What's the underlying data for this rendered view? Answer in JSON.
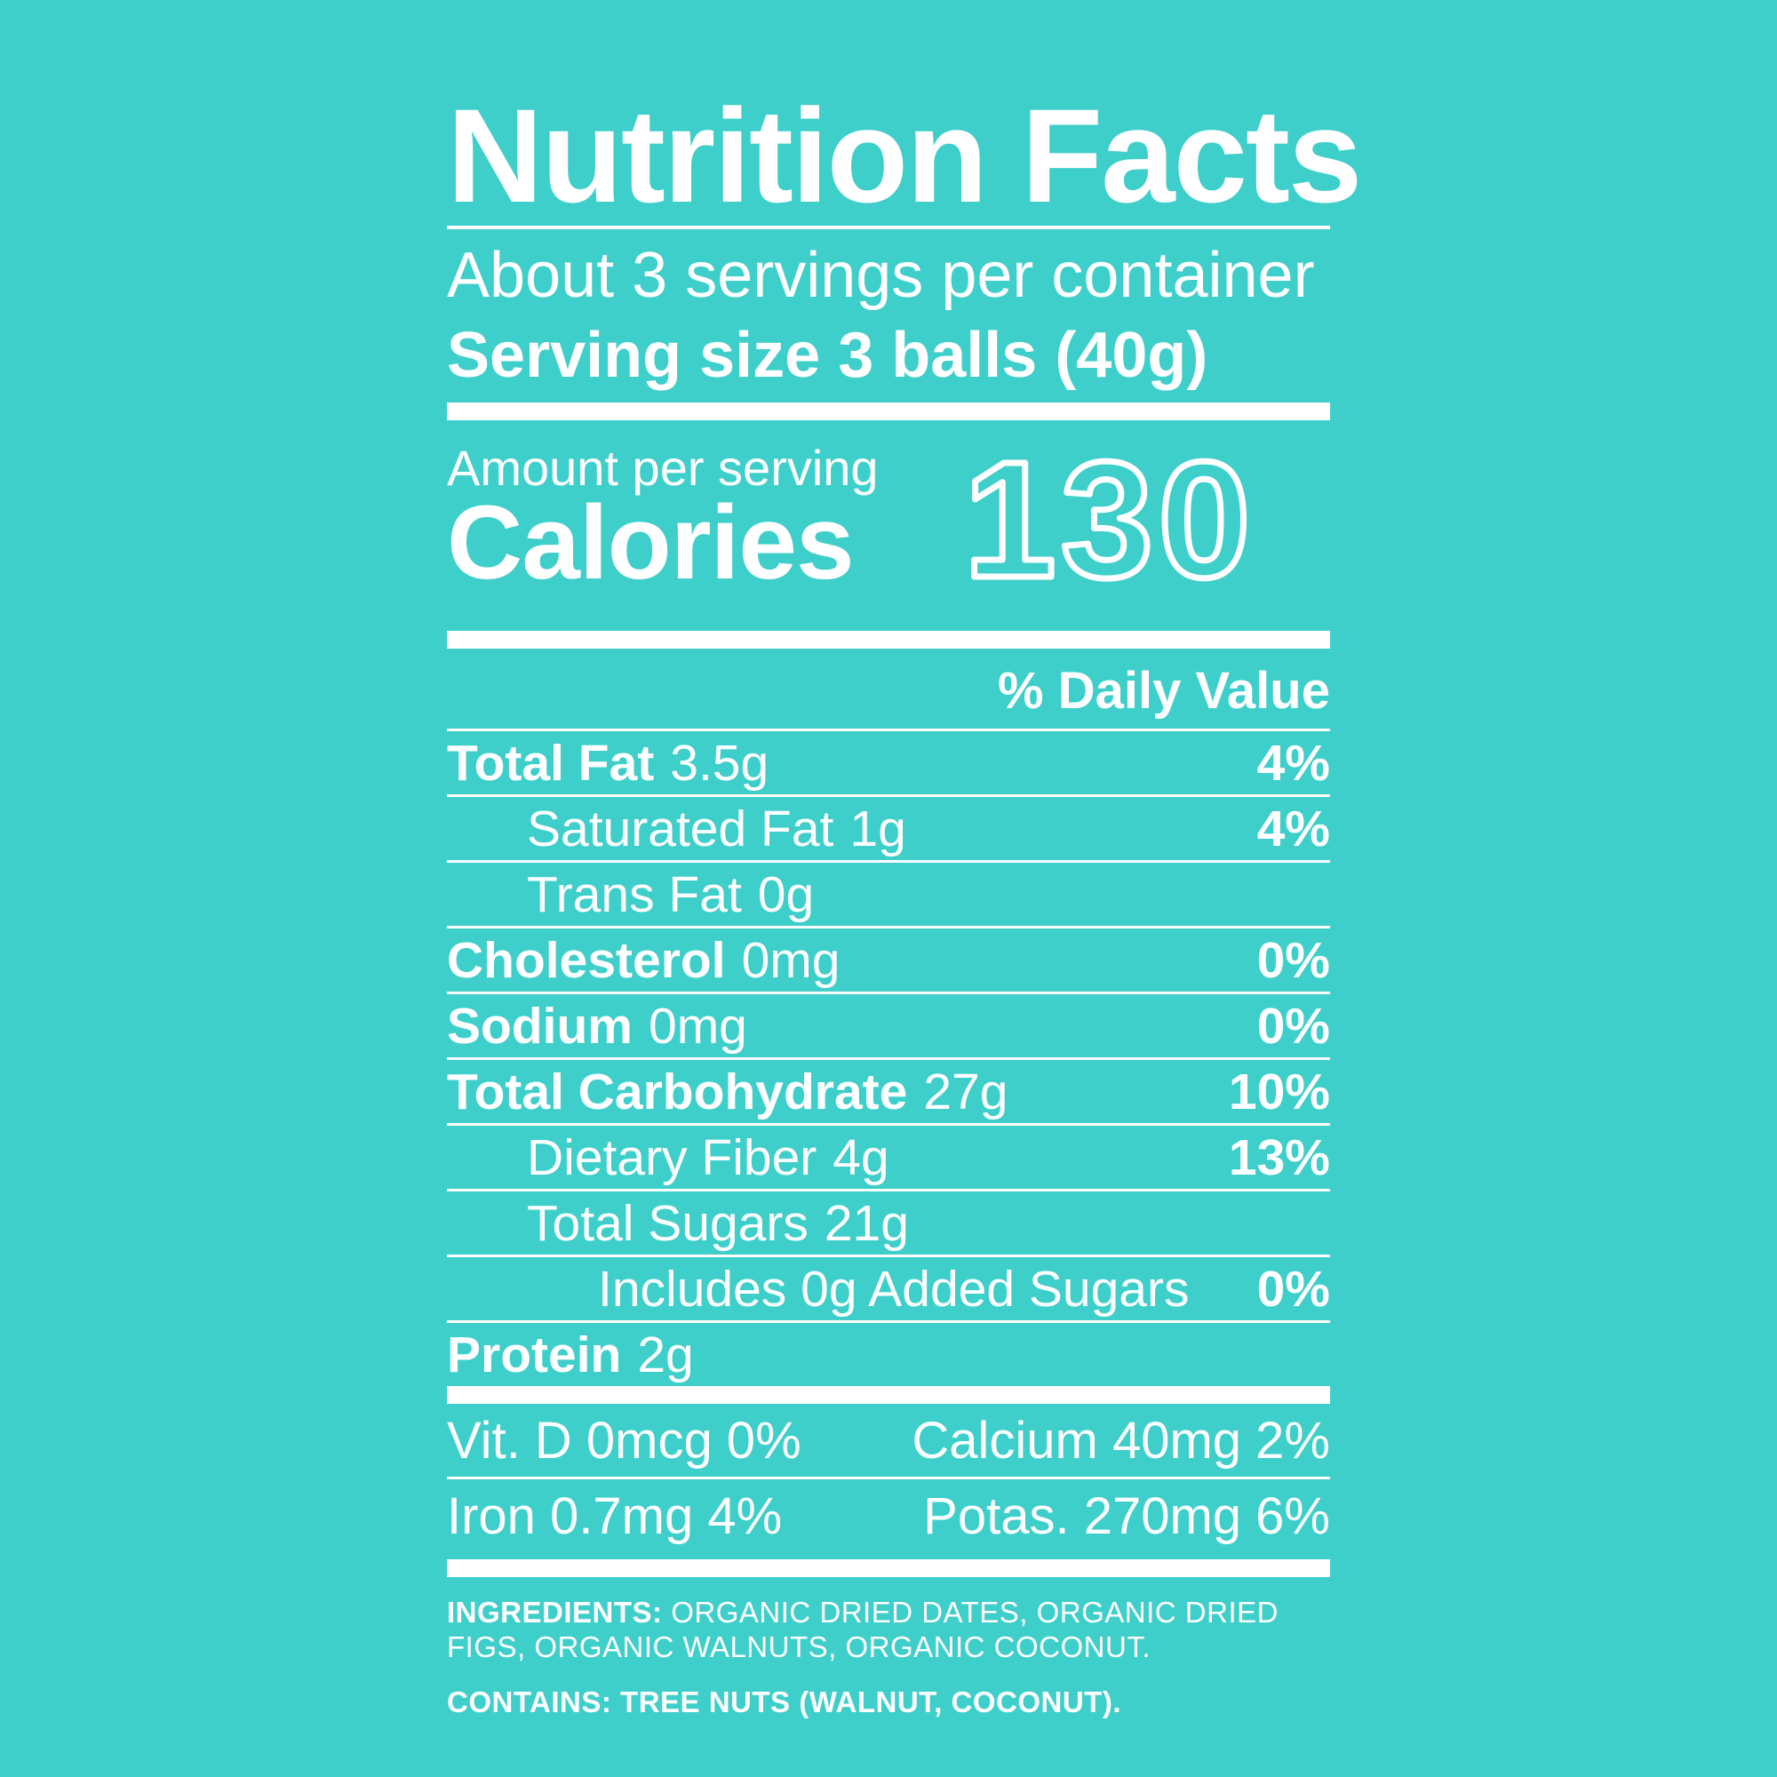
{
  "colors": {
    "background": "#3ECFCB",
    "text": "#FFFFFF"
  },
  "label": {
    "title": "Nutrition Facts",
    "servings_per_container": "About 3 servings per container",
    "serving_size": "Serving size 3 balls (40g)",
    "amount_per_serving": "Amount per serving",
    "calories_label": "Calories",
    "calories_value": "130",
    "daily_value_header": "% Daily Value",
    "nutrient_rows": [
      {
        "name": "Total Fat",
        "amount": "3.5g",
        "daily_value": "4%",
        "indent": 0,
        "bold": true
      },
      {
        "name": "Saturated Fat",
        "amount": "1g",
        "daily_value": "4%",
        "indent": 1,
        "bold": false
      },
      {
        "name": "Trans Fat",
        "amount": "0g",
        "daily_value": "",
        "indent": 1,
        "bold": false
      },
      {
        "name": "Cholesterol",
        "amount": "0mg",
        "daily_value": "0%",
        "indent": 0,
        "bold": true
      },
      {
        "name": "Sodium",
        "amount": "0mg",
        "daily_value": "0%",
        "indent": 0,
        "bold": true
      },
      {
        "name": "Total Carbohydrate",
        "amount": "27g",
        "daily_value": "10%",
        "indent": 0,
        "bold": true
      },
      {
        "name": "Dietary Fiber",
        "amount": "4g",
        "daily_value": "13%",
        "indent": 1,
        "bold": false
      },
      {
        "name": "Total Sugars",
        "amount": "21g",
        "daily_value": "",
        "indent": 1,
        "bold": false
      },
      {
        "name": "Includes 0g Added Sugars",
        "amount": "",
        "daily_value": "0%",
        "indent": 2,
        "bold": false
      },
      {
        "name": "Protein",
        "amount": "2g",
        "daily_value": "",
        "indent": 0,
        "bold": true,
        "no_rule": true
      }
    ],
    "micronutrient_rows": [
      {
        "left": "Vit. D 0mcg 0%",
        "right": "Calcium 40mg 2%"
      },
      {
        "left": "Iron 0.7mg 4%",
        "right": "Potas. 270mg 6%"
      }
    ],
    "ingredients": {
      "label": "INGREDIENTS:",
      "line1_rest": "ORGANIC DRIED DATES, ORGANIC DRIED",
      "line2": "FIGS, ORGANIC WALNUTS, ORGANIC COCONUT.",
      "contains": "CONTAINS: TREE NUTS (WALNUT, COCONUT)."
    }
  }
}
